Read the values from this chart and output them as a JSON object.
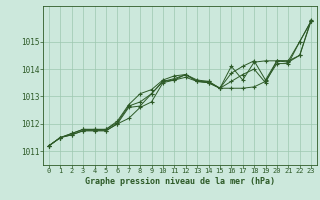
{
  "title": "Graphe pression niveau de la mer (hPa)",
  "bg_color": "#cce8dc",
  "grid_color": "#9ec8b0",
  "line_color": "#2d5a27",
  "xlim": [
    -0.5,
    23.5
  ],
  "ylim": [
    1010.5,
    1016.3
  ],
  "xticks": [
    0,
    1,
    2,
    3,
    4,
    5,
    6,
    7,
    8,
    9,
    10,
    11,
    12,
    13,
    14,
    15,
    16,
    17,
    18,
    19,
    20,
    21,
    22,
    23
  ],
  "yticks": [
    1011,
    1012,
    1013,
    1014,
    1015
  ],
  "series": [
    [
      1011.2,
      1011.5,
      1011.6,
      1011.75,
      1011.75,
      1011.75,
      1012.0,
      1012.2,
      1012.6,
      1012.8,
      1013.5,
      1013.6,
      1013.8,
      1013.55,
      1013.5,
      1013.3,
      1013.3,
      1013.3,
      1013.35,
      1013.55,
      1014.2,
      1014.2,
      1015.0,
      1015.75
    ],
    [
      1011.2,
      1011.5,
      1011.6,
      1011.75,
      1011.75,
      1011.75,
      1012.0,
      1012.6,
      1012.65,
      1013.1,
      1013.55,
      1013.6,
      1013.7,
      1013.55,
      1013.5,
      1013.3,
      1013.55,
      1013.8,
      1014.0,
      1013.5,
      1014.3,
      1014.3,
      1015.0,
      1015.75
    ],
    [
      1011.2,
      1011.5,
      1011.65,
      1011.8,
      1011.8,
      1011.8,
      1012.1,
      1012.7,
      1013.1,
      1013.25,
      1013.6,
      1013.75,
      1013.8,
      1013.6,
      1013.55,
      1013.3,
      1014.1,
      1013.6,
      1014.25,
      1014.3,
      1014.3,
      1014.25,
      1014.5,
      1015.75
    ],
    [
      1011.2,
      1011.5,
      1011.65,
      1011.8,
      1011.8,
      1011.8,
      1012.05,
      1012.65,
      1012.8,
      1013.1,
      1013.55,
      1013.65,
      1013.8,
      1013.55,
      1013.55,
      1013.3,
      1013.85,
      1014.1,
      1014.3,
      1013.6,
      1014.3,
      1014.3,
      1014.5,
      1015.8
    ]
  ]
}
